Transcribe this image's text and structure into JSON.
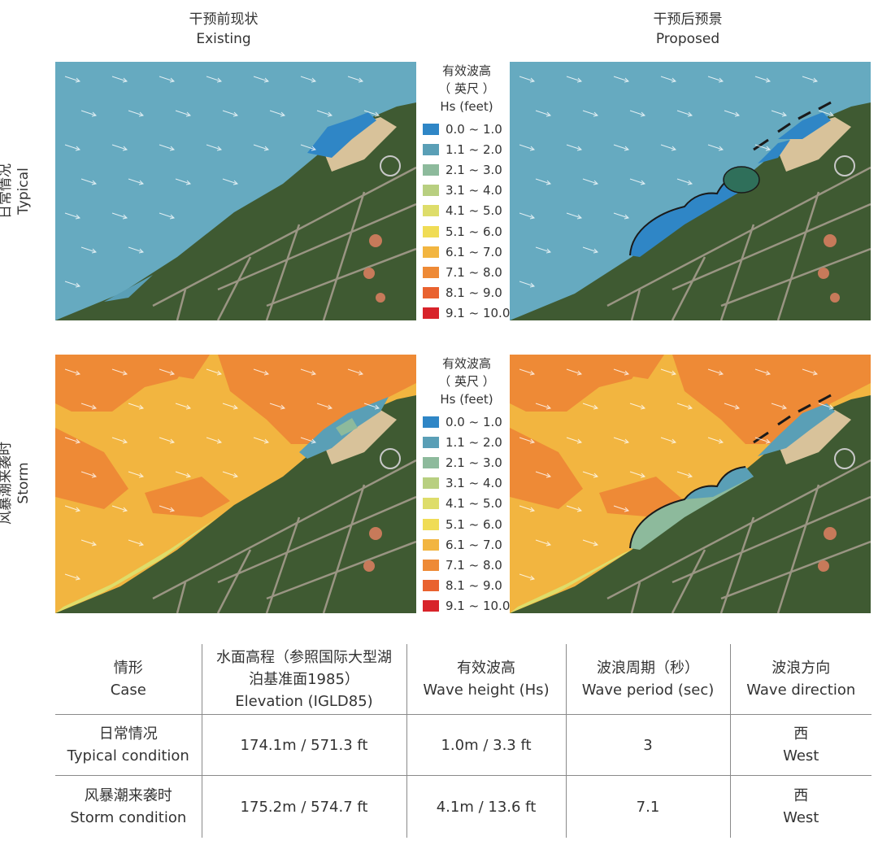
{
  "columns": {
    "existing": {
      "zh": "干预前现状",
      "en": "Existing"
    },
    "proposed": {
      "zh": "干预后预景",
      "en": "Proposed"
    }
  },
  "rows": {
    "typical": {
      "zh": "日常情况",
      "en": "Typical"
    },
    "storm": {
      "zh": "风暴潮来袭时",
      "en": "Storm"
    }
  },
  "legend": {
    "title_zh": "有效波高",
    "title_unit_zh": "（ 英尺 ）",
    "title_en": "Hs (feet)",
    "items": [
      {
        "label": "0.0 ~ 1.0",
        "color": "#2f86c6"
      },
      {
        "label": "1.1 ~ 2.0",
        "color": "#5a9fb6"
      },
      {
        "label": "2.1 ~ 3.0",
        "color": "#8dba9c"
      },
      {
        "label": "3.1 ~ 4.0",
        "color": "#b8cf80"
      },
      {
        "label": "4.1 ~ 5.0",
        "color": "#dedd6a"
      },
      {
        "label": "5.1 ~ 6.0",
        "color": "#f0dc55"
      },
      {
        "label": "6.1 ~ 7.0",
        "color": "#f2b540"
      },
      {
        "label": "7.1 ~ 8.0",
        "color": "#ee8a36"
      },
      {
        "label": "8.1 ~ 9.0",
        "color": "#e9622f"
      },
      {
        "label": "9.1 ~ 10.0",
        "color": "#d8232a"
      }
    ]
  },
  "table": {
    "headers": [
      {
        "zh": "情形",
        "en": "Case"
      },
      {
        "zh": "水面高程（参照国际大型湖泊基准面1985）",
        "en": "Elevation (IGLD85)"
      },
      {
        "zh": "有效波高",
        "en": "Wave height (Hs)"
      },
      {
        "zh": "波浪周期（秒）",
        "en": "Wave period (sec)"
      },
      {
        "zh": "波浪方向",
        "en": "Wave direction"
      }
    ],
    "rows": [
      {
        "case_zh": "日常情况",
        "case_en": "Typical condition",
        "elevation": "174.1m / 571.3 ft",
        "wave_height": "1.0m / 3.3 ft",
        "wave_period": "3",
        "direction_zh": "西",
        "direction_en": "West"
      },
      {
        "case_zh": "风暴潮来袭时",
        "case_en": "Storm condition",
        "elevation": "175.2m / 574.7 ft",
        "wave_height": "4.1m / 13.6 ft",
        "wave_period": "7.1",
        "direction_zh": "西",
        "direction_en": "West"
      }
    ]
  },
  "colors": {
    "water_typical": "#66aac0",
    "storm_orange": "#ee8a36",
    "storm_yellow": "#f2b540",
    "land": "#3f5a32",
    "beach": "#d8c29a",
    "breakwater": "#1a1a1a"
  }
}
